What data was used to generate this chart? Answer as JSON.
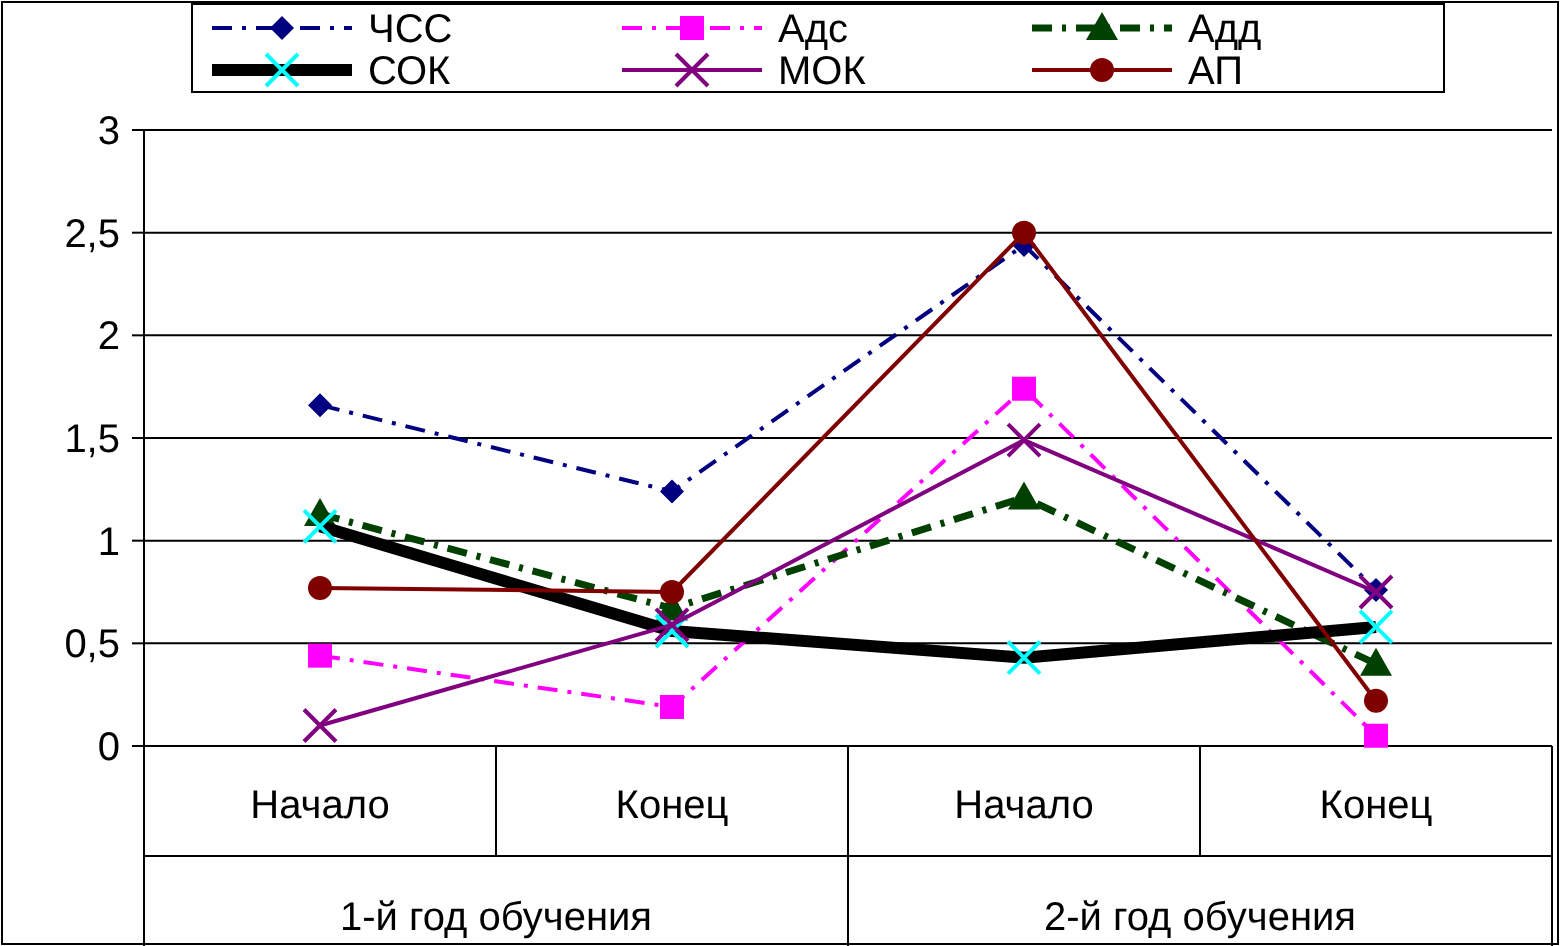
{
  "chart_data": {
    "type": "line",
    "categories": [
      "Начало",
      "Конец",
      "Начало",
      "Конец"
    ],
    "annotations": [
      "1-й год обучения",
      "2-й год обучения"
    ],
    "series": [
      {
        "name": "ЧСС",
        "color": "#000080",
        "values": [
          1.66,
          1.24,
          2.44,
          0.76
        ],
        "marker": "diamond",
        "line_style": "dashed"
      },
      {
        "name": "Адс",
        "color": "#ff00ff",
        "values": [
          0.44,
          0.19,
          1.74,
          0.05
        ],
        "marker": "square",
        "line_style": "dashed"
      },
      {
        "name": "Адд",
        "color": "#004000",
        "values": [
          1.13,
          0.67,
          1.21,
          0.4
        ],
        "marker": "triangle",
        "line_style": "dashed"
      },
      {
        "name": "СОК",
        "color": "#000000",
        "values": [
          1.07,
          0.56,
          0.43,
          0.58
        ],
        "marker": "cross",
        "line_style": "solid"
      },
      {
        "name": "МОК",
        "color": "#800080",
        "values": [
          0.1,
          0.59,
          1.49,
          0.75
        ],
        "marker": "cross",
        "line_style": "solid"
      },
      {
        "name": "АП",
        "color": "#800000",
        "values": [
          0.77,
          0.75,
          2.5,
          0.22
        ],
        "marker": "circle",
        "line_style": "solid"
      }
    ],
    "ylim": [
      0,
      3
    ],
    "yticks": [
      0,
      {
        "value": 0.5,
        "label": "0,5"
      },
      1,
      {
        "value": 1.5,
        "label": "1,5"
      },
      2,
      {
        "value": 2.5,
        "label": "2,5"
      },
      3
    ],
    "grid": "y",
    "legend": "top"
  }
}
